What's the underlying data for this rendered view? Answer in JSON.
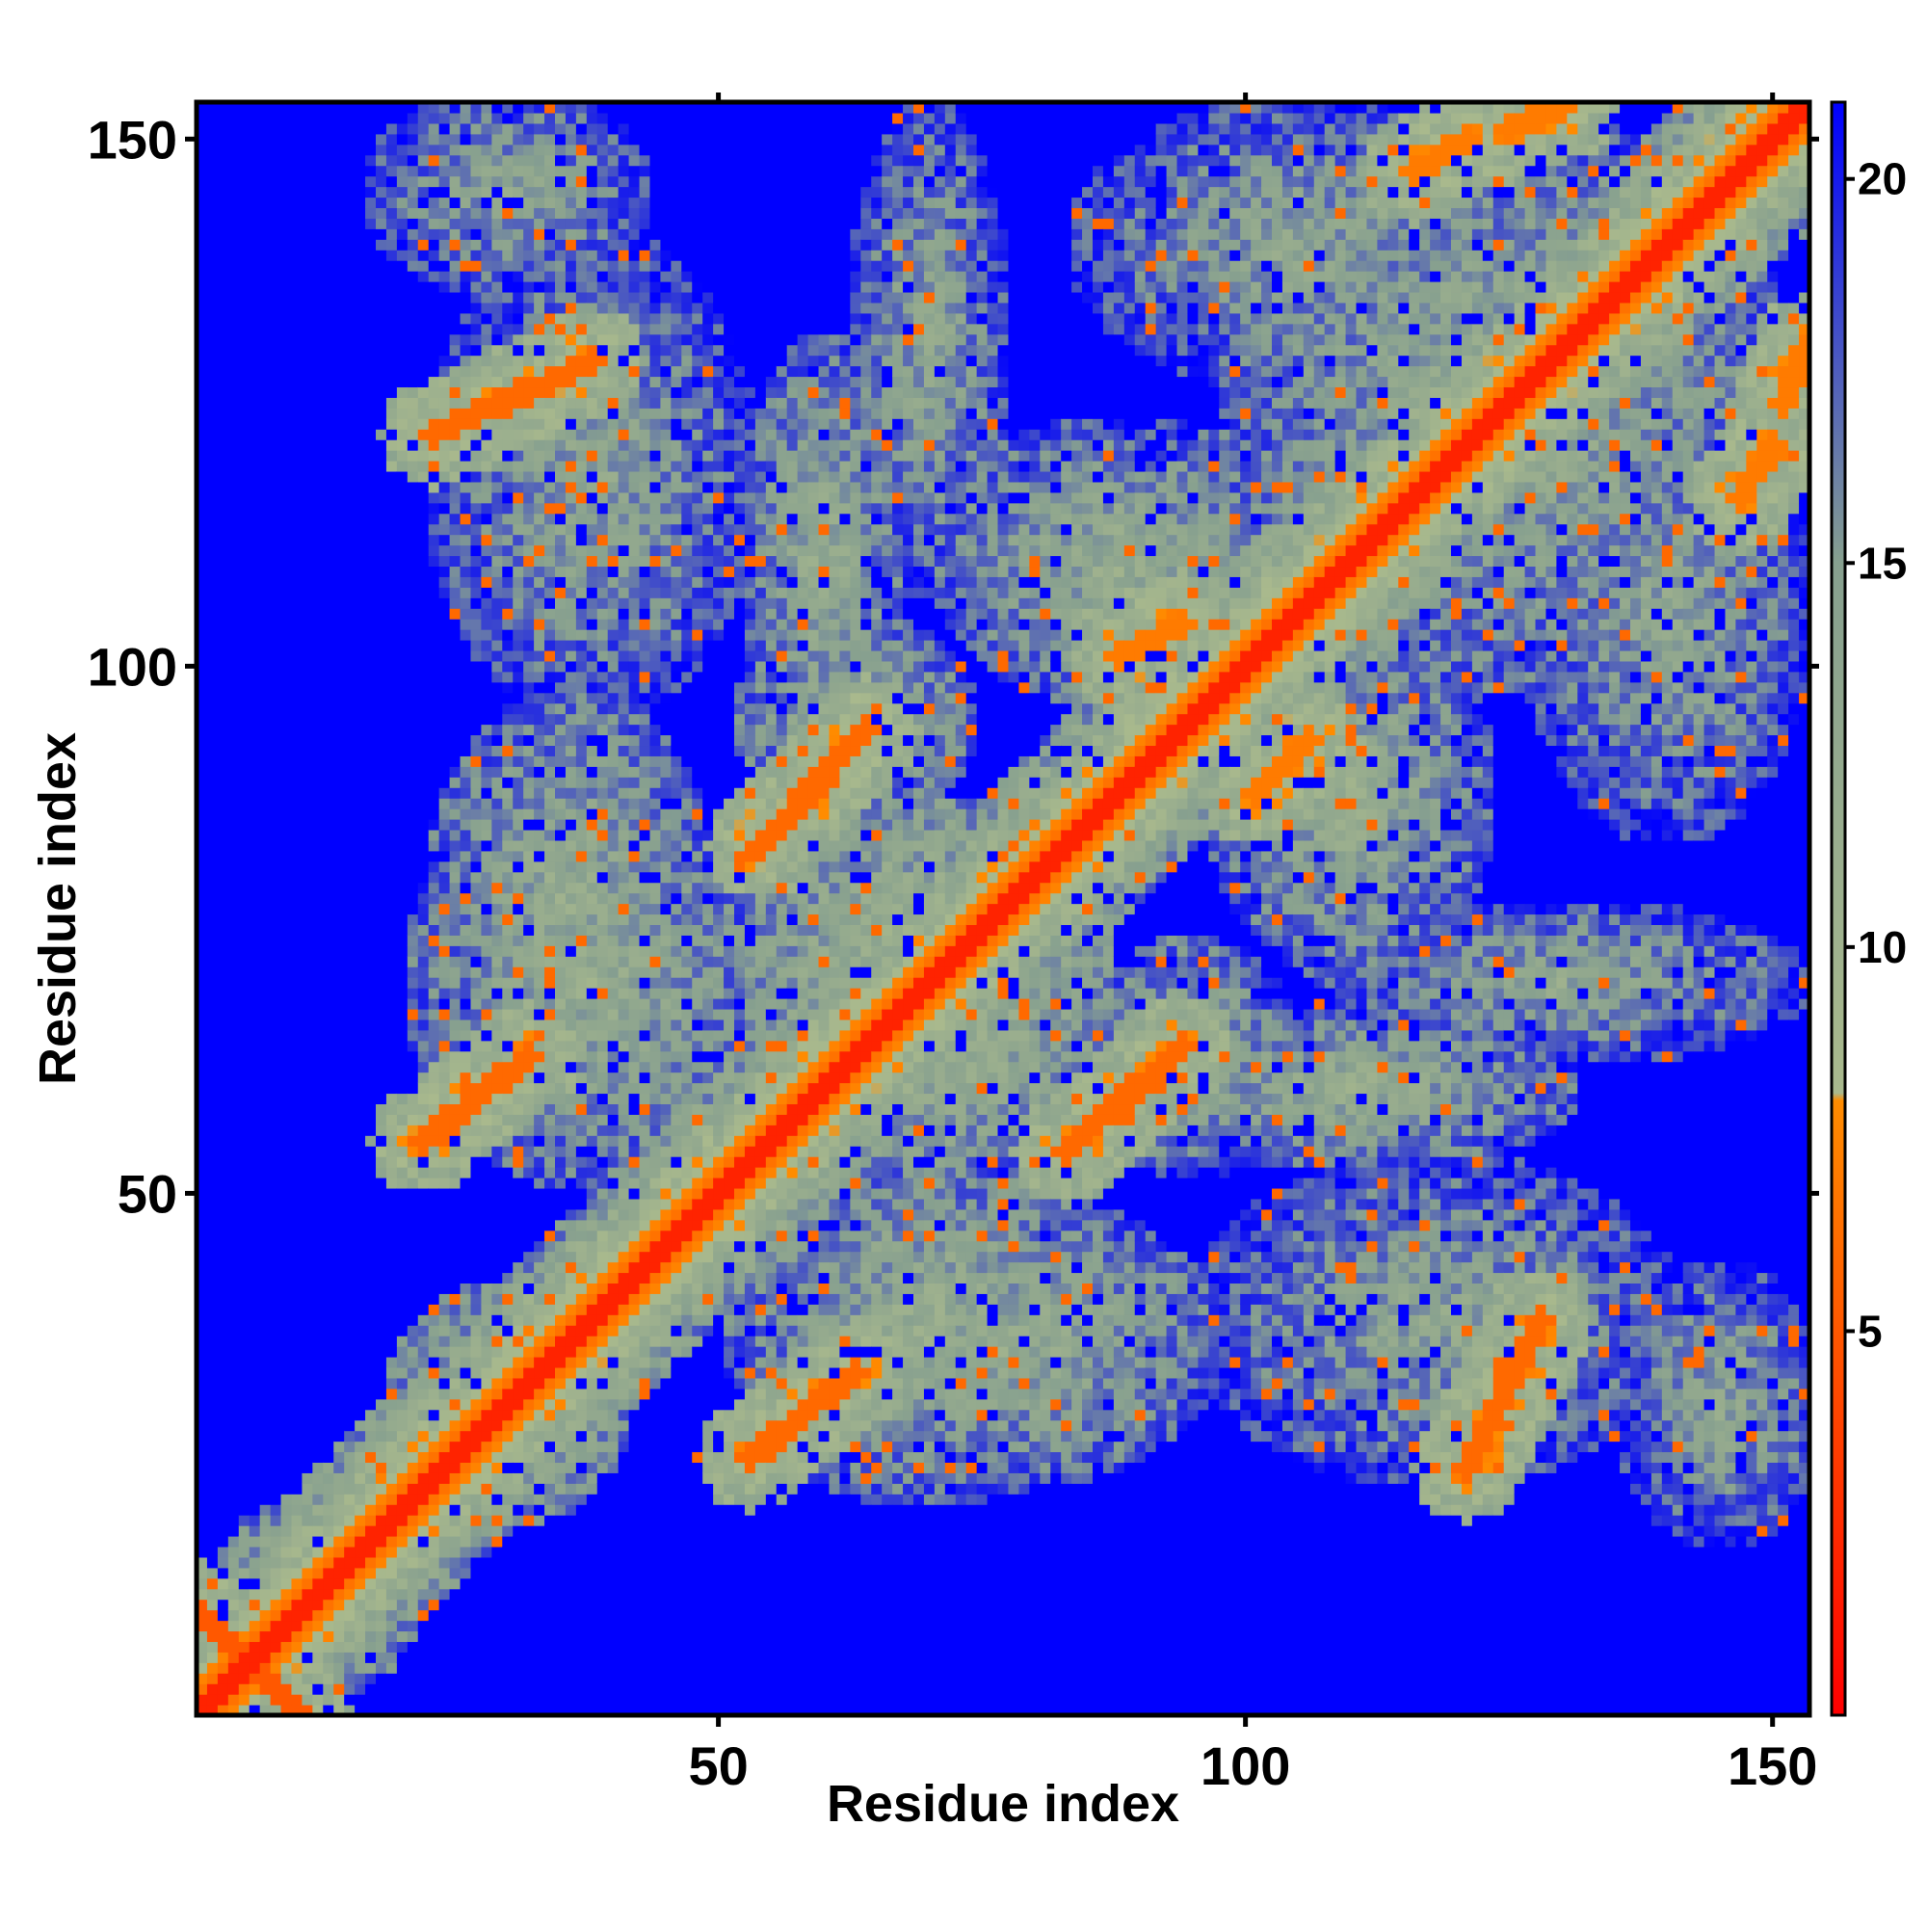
{
  "chart_data": {
    "type": "heatmap",
    "title": "",
    "xlabel": "Residue index",
    "ylabel": "Residue index",
    "n_residues": 153,
    "xlim": [
      1,
      153
    ],
    "ylim": [
      1,
      153
    ],
    "x_ticks": [
      50,
      100,
      150
    ],
    "y_ticks": [
      50,
      100,
      150
    ],
    "x_tick_labels": [
      "50",
      "100",
      "150"
    ],
    "y_tick_labels": [
      "50",
      "100",
      "150"
    ],
    "colorbar": {
      "range": [
        0,
        21
      ],
      "ticks": [
        5,
        10,
        15,
        20
      ],
      "tick_labels": [
        "5",
        "10",
        "15",
        "20"
      ],
      "stops": [
        {
          "value": 0,
          "color": "#ff0000"
        },
        {
          "value": 8,
          "color": "#ff8c00"
        },
        {
          "value": 8.1,
          "color": "#a9b98d"
        },
        {
          "value": 15,
          "color": "#87a08f"
        },
        {
          "value": 21,
          "color": "#0000ff"
        }
      ]
    },
    "value_cap": 21,
    "diagonal_band": {
      "core_value": 2,
      "core_width": 1.5,
      "shoulder_value": 6,
      "shoulder_width": 4
    },
    "contact_segments": [
      {
        "x1": 1,
        "y1": 10,
        "x2": 10,
        "y2": 1,
        "value": 5
      },
      {
        "x1": 22,
        "y1": 55,
        "x2": 32,
        "y2": 63,
        "value": 6
      },
      {
        "x1": 53,
        "y1": 25,
        "x2": 63,
        "y2": 33,
        "value": 6
      },
      {
        "x1": 54,
        "y1": 83,
        "x2": 64,
        "y2": 94,
        "value": 6
      },
      {
        "x1": 83,
        "y1": 54,
        "x2": 94,
        "y2": 64,
        "value": 6
      },
      {
        "x1": 23,
        "y1": 122,
        "x2": 38,
        "y2": 129,
        "value": 6
      },
      {
        "x1": 121,
        "y1": 24,
        "x2": 128,
        "y2": 38,
        "value": 6
      },
      {
        "x1": 88,
        "y1": 101,
        "x2": 94,
        "y2": 104,
        "value": 7
      },
      {
        "x1": 101,
        "y1": 88,
        "x2": 106,
        "y2": 93,
        "value": 7
      },
      {
        "x1": 116,
        "y1": 147,
        "x2": 121,
        "y2": 150,
        "value": 7
      },
      {
        "x1": 147,
        "y1": 116,
        "x2": 150,
        "y2": 121,
        "value": 7
      },
      {
        "x1": 125,
        "y1": 151,
        "x2": 130,
        "y2": 153,
        "value": 7
      },
      {
        "x1": 151,
        "y1": 125,
        "x2": 153,
        "y2": 130,
        "value": 7
      }
    ],
    "contact_regions": [
      {
        "x": 30,
        "y": 30,
        "rx": 12,
        "ry": 12,
        "value": 11
      },
      {
        "x": 38,
        "y": 70,
        "rx": 18,
        "ry": 20,
        "value": 12
      },
      {
        "x": 70,
        "y": 38,
        "rx": 20,
        "ry": 18,
        "value": 12
      },
      {
        "x": 70,
        "y": 70,
        "rx": 18,
        "ry": 18,
        "value": 10
      },
      {
        "x": 78,
        "y": 36,
        "rx": 20,
        "ry": 14,
        "value": 12
      },
      {
        "x": 36,
        "y": 78,
        "rx": 14,
        "ry": 20,
        "value": 12
      },
      {
        "x": 60,
        "y": 110,
        "rx": 8,
        "ry": 22,
        "value": 12
      },
      {
        "x": 110,
        "y": 60,
        "rx": 22,
        "ry": 8,
        "value": 12
      },
      {
        "x": 38,
        "y": 118,
        "rx": 16,
        "ry": 24,
        "value": 13
      },
      {
        "x": 118,
        "y": 38,
        "rx": 24,
        "ry": 16,
        "value": 13
      },
      {
        "x": 88,
        "y": 110,
        "rx": 18,
        "ry": 14,
        "value": 12
      },
      {
        "x": 110,
        "y": 88,
        "rx": 14,
        "ry": 18,
        "value": 12
      },
      {
        "x": 125,
        "y": 125,
        "rx": 28,
        "ry": 28,
        "value": 12
      },
      {
        "x": 105,
        "y": 140,
        "rx": 22,
        "ry": 14,
        "value": 13
      },
      {
        "x": 140,
        "y": 105,
        "rx": 14,
        "ry": 22,
        "value": 13
      },
      {
        "x": 130,
        "y": 70,
        "rx": 24,
        "ry": 8,
        "value": 13
      },
      {
        "x": 70,
        "y": 130,
        "rx": 8,
        "ry": 24,
        "value": 13
      },
      {
        "x": 145,
        "y": 30,
        "rx": 10,
        "ry": 14,
        "value": 13
      },
      {
        "x": 30,
        "y": 145,
        "rx": 14,
        "ry": 10,
        "value": 13
      },
      {
        "x": 12,
        "y": 12,
        "rx": 10,
        "ry": 10,
        "value": 11
      },
      {
        "x": 95,
        "y": 63,
        "rx": 10,
        "ry": 12,
        "value": 12
      },
      {
        "x": 63,
        "y": 95,
        "rx": 12,
        "ry": 10,
        "value": 12
      }
    ]
  }
}
